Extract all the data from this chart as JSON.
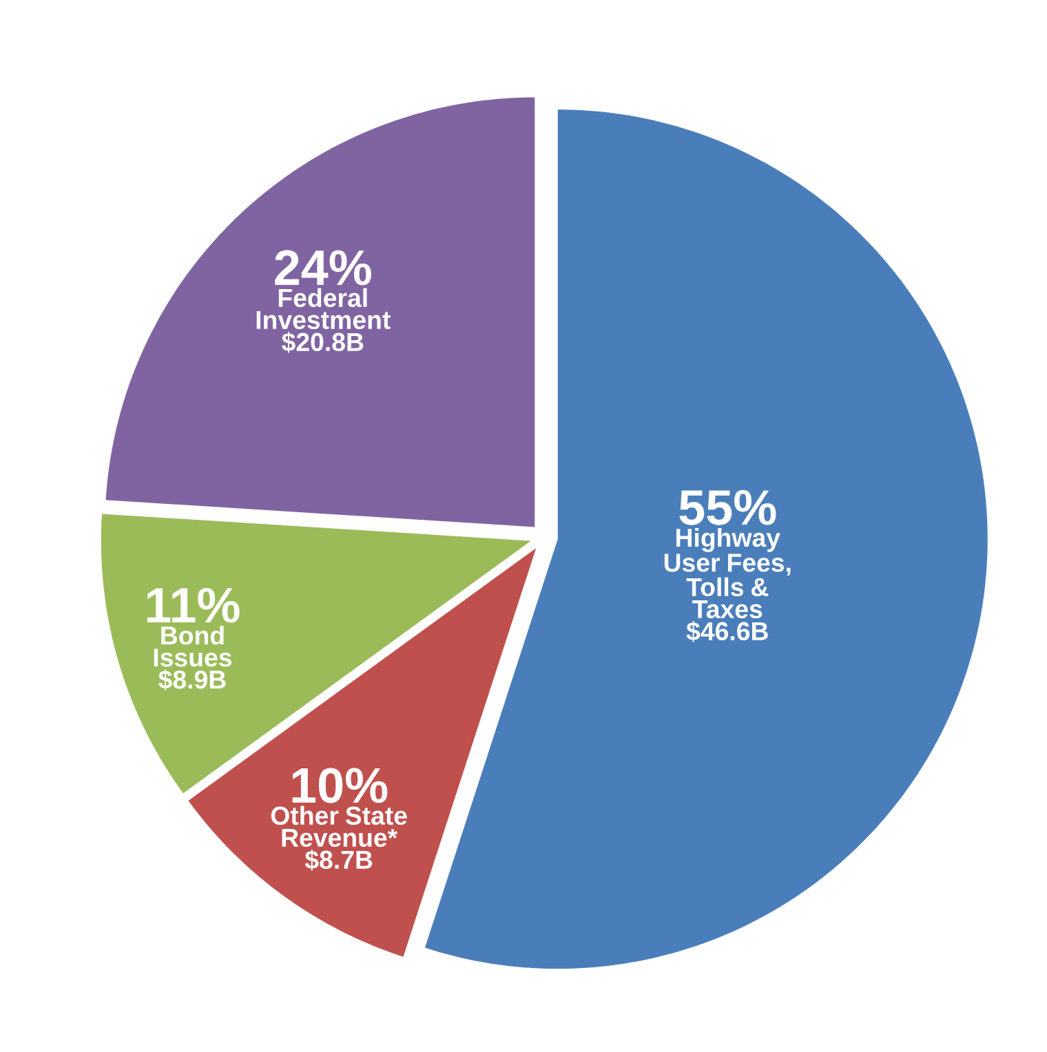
{
  "chart_data": {
    "type": "pie",
    "categories": [
      "Highway User Fees, Tolls & Taxes",
      "Other State Revenue*",
      "Bond Issues",
      "Federal Investment"
    ],
    "values": [
      55,
      10,
      11,
      24
    ],
    "colors": [
      "#4a7ebb",
      "#c0504d",
      "#9bbb59",
      "#8064a2"
    ],
    "value_labels": [
      "55%",
      "10%",
      "11%",
      "24%"
    ],
    "annotations": [
      {
        "text": "$46.6B",
        "x": "Highway User Fees, Tolls & Taxes"
      },
      {
        "text": "$8.7B",
        "x": "Other State Revenue*"
      },
      {
        "text": "$8.9B",
        "x": "Bond Issues"
      },
      {
        "text": "$20.8B",
        "x": "Federal Investment"
      }
    ]
  }
}
